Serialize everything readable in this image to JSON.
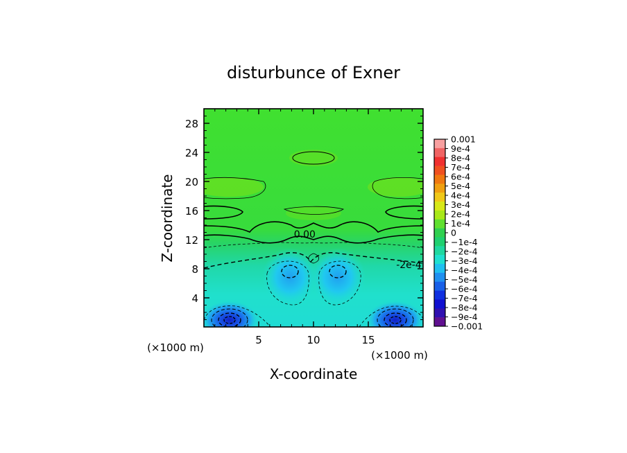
{
  "chart_data": {
    "type": "heatmap",
    "title": "disturbunce of Exner",
    "xlabel": "X-coordinate",
    "ylabel": "Z-coordinate",
    "x_unit": "(×1000 m)",
    "y_unit": "(×1000 m)",
    "xlim": [
      0,
      20
    ],
    "ylim": [
      0,
      30
    ],
    "x_ticks": [
      5,
      10,
      15
    ],
    "y_ticks": [
      4,
      8,
      12,
      16,
      20,
      24,
      28
    ],
    "contour_labels": [
      {
        "text": "0.00",
        "x": 9.2,
        "z": 12.3
      },
      {
        "text": "-2e-4",
        "x": 18.7,
        "z": 8.1
      }
    ],
    "colorbar": {
      "labels": [
        "0.001",
        "9e-4",
        "8e-4",
        "7e-4",
        "6e-4",
        "5e-4",
        "4e-4",
        "3e-4",
        "2e-4",
        "1e-4",
        "0",
        "−1e-4",
        "−2e-4",
        "−3e-4",
        "−4e-4",
        "−5e-4",
        "−6e-4",
        "−7e-4",
        "−8e-4",
        "−9e-4",
        "−0.001"
      ],
      "colors": [
        "#f8a0a0",
        "#f06464",
        "#f03030",
        "#f05020",
        "#f07810",
        "#f0a010",
        "#f0c818",
        "#d8e818",
        "#a8e818",
        "#60e030",
        "#30d050",
        "#20d070",
        "#20d8a0",
        "#20e0d0",
        "#20c0f0",
        "#2090f0",
        "#1860e8",
        "#1030e0",
        "#1010d0",
        "#3010b0",
        "#601090"
      ]
    },
    "background_color": "#40e030",
    "positive_color": "#5ee024"
  }
}
